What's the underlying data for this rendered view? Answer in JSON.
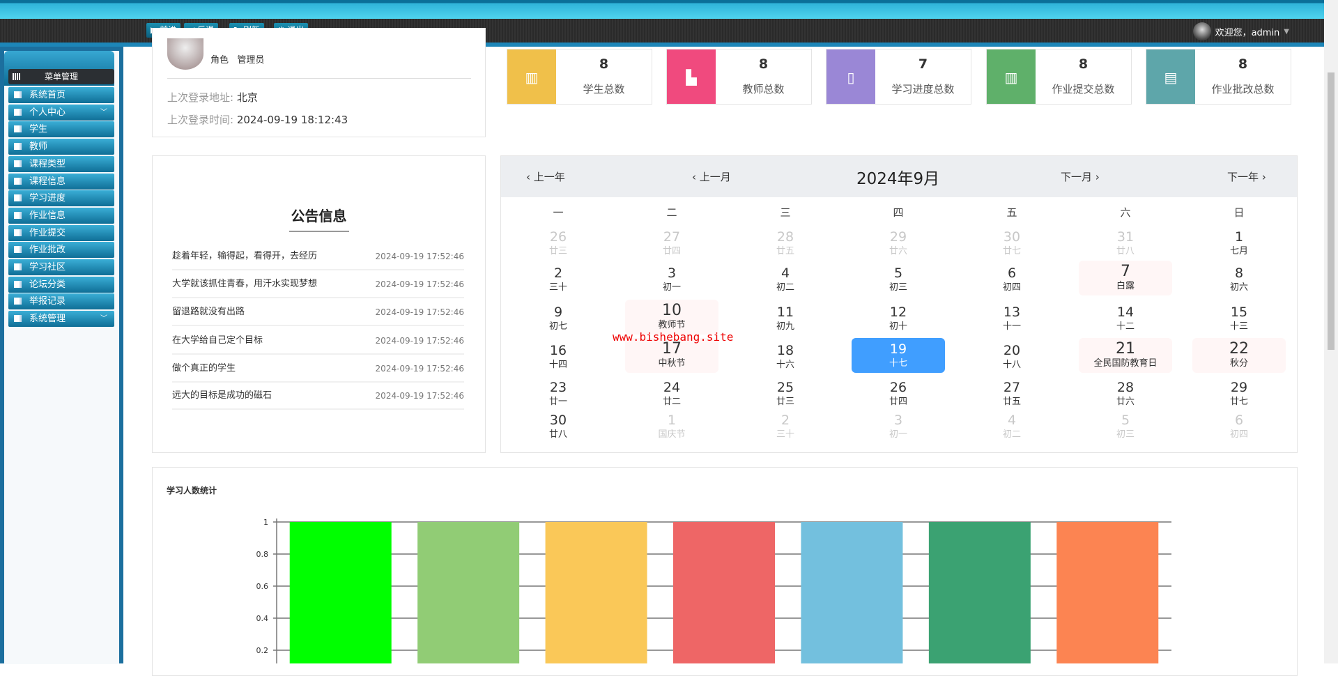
{
  "toolbar": {
    "buttons": [
      {
        "label": "前进",
        "icon": "▶"
      },
      {
        "label": "后退",
        "icon": "◀"
      },
      {
        "label": "刷新",
        "icon": "↻"
      },
      {
        "label": "退出",
        "icon": "⏻"
      }
    ],
    "welcome": "欢迎您，admin",
    "dropdown_icon": "▼"
  },
  "sidebar": {
    "title": "菜单管理",
    "items": [
      {
        "label": "系统首页"
      },
      {
        "label": "个人中心",
        "chevron": true
      },
      {
        "label": "学生"
      },
      {
        "label": "教师"
      },
      {
        "label": "课程类型"
      },
      {
        "label": "课程信息"
      },
      {
        "label": "学习进度"
      },
      {
        "label": "作业信息"
      },
      {
        "label": "作业提交"
      },
      {
        "label": "作业批改"
      },
      {
        "label": "学习社区"
      },
      {
        "label": "论坛分类"
      },
      {
        "label": "举报记录"
      },
      {
        "label": "系统管理",
        "chevron": true
      }
    ]
  },
  "profile": {
    "role_label": "角色",
    "role": "管理员",
    "address_label": "上次登录地址:",
    "address": "北京",
    "time_label": "上次登录时间:",
    "time": "2024-09-19 18:12:43"
  },
  "stats": [
    {
      "value": "8",
      "label": "学生总数",
      "color": "#f0c04a"
    },
    {
      "value": "8",
      "label": "教师总数",
      "color": "#f04a7e"
    },
    {
      "value": "7",
      "label": "学习进度总数",
      "color": "#9a87d6"
    },
    {
      "value": "8",
      "label": "作业提交总数",
      "color": "#5fb06a"
    },
    {
      "value": "8",
      "label": "作业批改总数",
      "color": "#5ea6aa"
    }
  ],
  "notice": {
    "title": "公告信息",
    "items": [
      {
        "text": "趁着年轻，输得起，看得开，去经历",
        "time": "2024-09-19 17:52:46"
      },
      {
        "text": "大学就该抓住青春，用汗水实现梦想",
        "time": "2024-09-19 17:52:46"
      },
      {
        "text": "留退路就没有出路",
        "time": "2024-09-19 17:52:46"
      },
      {
        "text": "在大学给自己定个目标",
        "time": "2024-09-19 17:52:46"
      },
      {
        "text": "做个真正的学生",
        "time": "2024-09-19 17:52:46"
      },
      {
        "text": "远大的目标是成功的磁石",
        "time": "2024-09-19 17:52:46"
      }
    ]
  },
  "calendar": {
    "title": "2024年9月",
    "prev_year": "‹ 上一年",
    "prev_month": "‹ 上一月",
    "next_month": "下一月 ›",
    "next_year": "下一年 ›",
    "weekdays": [
      "一",
      "二",
      "三",
      "四",
      "五",
      "六",
      "日"
    ],
    "rows": [
      [
        [
          "26",
          "廿三",
          "o"
        ],
        [
          "27",
          "廿四",
          "o"
        ],
        [
          "28",
          "廿五",
          "o"
        ],
        [
          "29",
          "廿六",
          "o"
        ],
        [
          "30",
          "廿七",
          "o"
        ],
        [
          "31",
          "廿八",
          "o"
        ],
        [
          "1",
          "七月",
          ""
        ]
      ],
      [
        [
          "2",
          "三十",
          ""
        ],
        [
          "3",
          "初一",
          ""
        ],
        [
          "4",
          "初二",
          ""
        ],
        [
          "5",
          "初三",
          ""
        ],
        [
          "6",
          "初四",
          ""
        ],
        [
          "7",
          "白露",
          "f"
        ],
        [
          "8",
          "初六",
          ""
        ]
      ],
      [
        [
          "9",
          "初七",
          ""
        ],
        [
          "10",
          "教师节",
          "f"
        ],
        [
          "11",
          "初九",
          ""
        ],
        [
          "12",
          "初十",
          ""
        ],
        [
          "13",
          "十一",
          ""
        ],
        [
          "14",
          "十二",
          ""
        ],
        [
          "15",
          "十三",
          ""
        ]
      ],
      [
        [
          "16",
          "十四",
          ""
        ],
        [
          "17",
          "中秋节",
          "f"
        ],
        [
          "18",
          "十六",
          ""
        ],
        [
          "19",
          "十七",
          "s"
        ],
        [
          "20",
          "十八",
          ""
        ],
        [
          "21",
          "全民国防教育日",
          "f"
        ],
        [
          "22",
          "秋分",
          "f"
        ]
      ],
      [
        [
          "23",
          "廿一",
          ""
        ],
        [
          "24",
          "廿二",
          ""
        ],
        [
          "25",
          "廿三",
          ""
        ],
        [
          "26",
          "廿四",
          ""
        ],
        [
          "27",
          "廿五",
          ""
        ],
        [
          "28",
          "廿六",
          ""
        ],
        [
          "29",
          "廿七",
          ""
        ]
      ],
      [
        [
          "30",
          "廿八",
          ""
        ],
        [
          "1",
          "国庆节",
          "o"
        ],
        [
          "2",
          "三十",
          "o"
        ],
        [
          "3",
          "初一",
          "o"
        ],
        [
          "4",
          "初二",
          "o"
        ],
        [
          "5",
          "初三",
          "o"
        ],
        [
          "6",
          "初四",
          "o"
        ]
      ]
    ],
    "selected_color": "#409eff"
  },
  "watermark": "www.bishebang.site",
  "chart_data": {
    "type": "bar",
    "title": "学习人数统计",
    "yticks": [
      "0.2",
      "0.4",
      "0.6",
      "0.8",
      "1"
    ],
    "ylim": [
      0,
      1
    ],
    "grid": true,
    "values": [
      1,
      1,
      1,
      1,
      1,
      1,
      1
    ],
    "colors": [
      "#00ff00",
      "#91cc75",
      "#fac858",
      "#ee6666",
      "#73c0de",
      "#3ba272",
      "#fc8452"
    ]
  }
}
